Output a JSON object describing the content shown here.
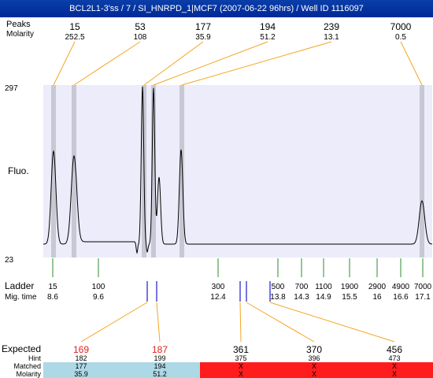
{
  "window": {
    "title": "BCL2L1-3'ss / 7 / SI_HNRPD_1|MCF7 (2007-06-22 96hrs) / Well ID 1116097"
  },
  "colors": {
    "plot_bg": "#ececfa",
    "band": "#c8c8d4",
    "trace": "#000000",
    "connector": "#f5a623",
    "ladder_tick": "#2e8b2e",
    "expected_tick": "#1a1acc",
    "expected_red": "#e2231a",
    "matched_bg": "#add8e6",
    "unmatched_bg": "#ff1c1c"
  },
  "chart_data": {
    "type": "line",
    "xlabel": "",
    "ylabel": "Fluo.",
    "ylim": [
      23,
      297
    ],
    "y_tick_labels": [
      "297",
      "23"
    ],
    "peaks": {
      "row_labels": [
        "Peaks",
        "Molarity"
      ],
      "sizes": [
        "15",
        "53",
        "177",
        "194",
        "239",
        "7000"
      ],
      "molarity": [
        "252.5",
        "108",
        "35.9",
        "51.2",
        "13.1",
        "0.5"
      ]
    },
    "ladder": {
      "row_labels": [
        "Ladder",
        "Mig. time"
      ],
      "sizes": [
        "15",
        "100",
        "300",
        "500",
        "700",
        "1100",
        "1900",
        "2900",
        "4900",
        "7000"
      ],
      "mig_time": [
        "8.6",
        "9.6",
        "12.4",
        "13.8",
        "14.3",
        "14.9",
        "15.5",
        "16",
        "16.6",
        "17.1"
      ]
    },
    "expected": {
      "row_labels": [
        "Expected",
        "Hint",
        "Matched",
        "Molarity"
      ],
      "values": [
        "169",
        "187",
        "361",
        "370",
        "456"
      ],
      "hint": [
        "182",
        "199",
        "375",
        "396",
        "473"
      ],
      "matched": [
        "177",
        "194",
        "X",
        "X",
        "X"
      ],
      "molarity": [
        "35.9",
        "51.2",
        "X",
        "X",
        "X"
      ],
      "is_matched": [
        true,
        true,
        false,
        false,
        false
      ]
    }
  }
}
